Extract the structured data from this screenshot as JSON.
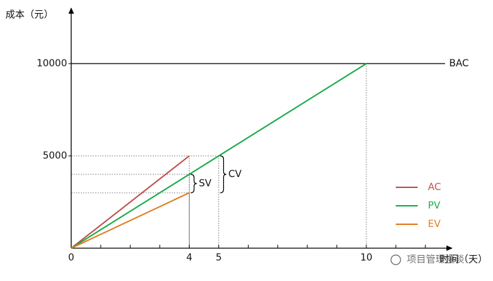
{
  "chart_data": {
    "type": "line",
    "y_axis_label": "成本（元）",
    "x_axis_label": "时间（天）",
    "watermark": "项目管理漫谈",
    "xlim": [
      0,
      12.9
    ],
    "ylim": [
      0,
      13000
    ],
    "xticks": [
      0,
      4,
      5,
      10
    ],
    "xminor_ticks": [
      1,
      2,
      3,
      4,
      5,
      6,
      7,
      8,
      9,
      10,
      11,
      12
    ],
    "yticks": [
      5000,
      10000
    ],
    "series": [
      {
        "name": "AC",
        "color": "#c0504d",
        "x": [
          0,
          4
        ],
        "values": [
          0,
          5000
        ]
      },
      {
        "name": "PV",
        "color": "#1aaa4a",
        "x": [
          0,
          4,
          5,
          10
        ],
        "values": [
          0,
          4000,
          5000,
          10000
        ]
      },
      {
        "name": "EV",
        "color": "#e07b1c",
        "x": [
          0,
          4
        ],
        "values": [
          0,
          3000
        ]
      }
    ],
    "bac": {
      "label": "BAC",
      "value": 10000
    },
    "annotations": [
      {
        "text": "SV",
        "x": 4,
        "from": 3000,
        "to": 4000
      },
      {
        "text": "CV",
        "x": 5,
        "from": 3000,
        "to": 5000
      }
    ]
  }
}
